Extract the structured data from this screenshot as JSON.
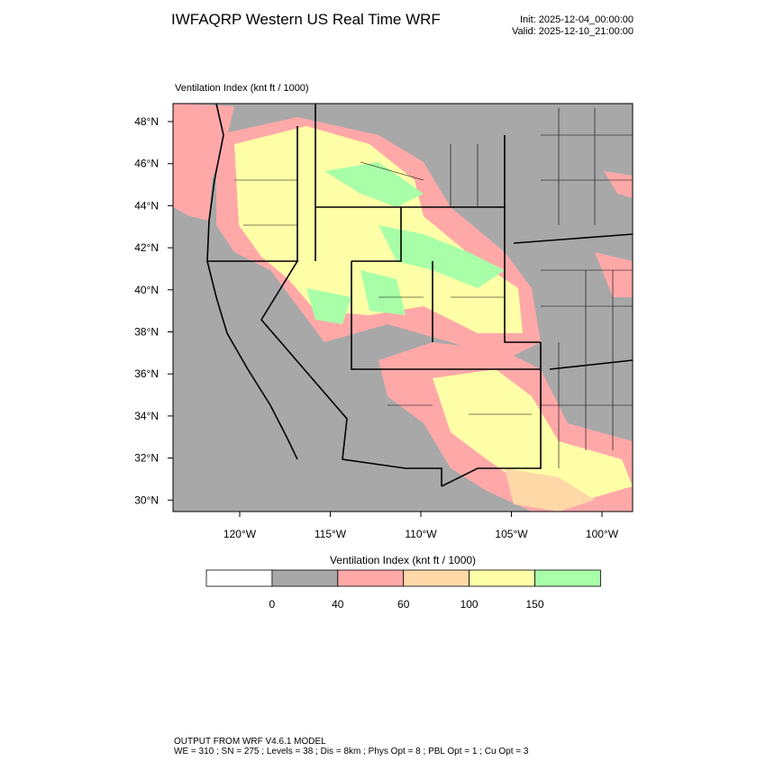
{
  "header": {
    "title": "IWFAQRP Western US Real Time WRF",
    "init": "Init: 2025-12-04_00:00:00",
    "valid": "Valid: 2025-12-10_21:00:00"
  },
  "map": {
    "label": "Ventilation Index   (knt ft / 1000)",
    "lat_ticks": [
      "48°N",
      "46°N",
      "44°N",
      "42°N",
      "40°N",
      "38°N",
      "36°N",
      "34°N",
      "32°N",
      "30°N"
    ],
    "lon_ticks": [
      "120°W",
      "115°W",
      "110°W",
      "105°W",
      "100°W"
    ]
  },
  "colorbar": {
    "title": "Ventilation Index   (knt ft / 1000)",
    "colors": [
      "#ffffff",
      "#a8a8a8",
      "#ffa8a8",
      "#ffd8a8",
      "#ffffa8",
      "#a8ffa8"
    ],
    "labels": [
      "0",
      "40",
      "60",
      "100",
      "150"
    ]
  },
  "footer": {
    "line1": "OUTPUT FROM WRF V4.6.1 MODEL",
    "line2": "WE = 310 ; SN = 275 ; Levels = 38 ; Dis = 8km ; Phys Opt = 8 ; PBL Opt = 1 ; Cu Opt = 3"
  }
}
